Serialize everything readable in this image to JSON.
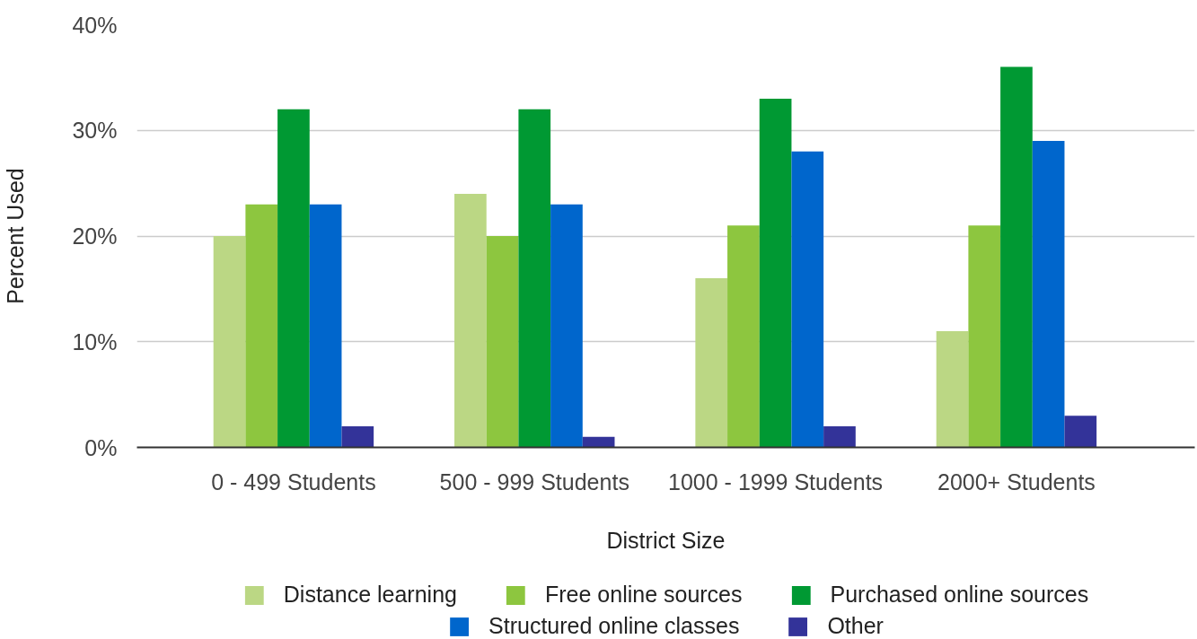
{
  "chart_data": {
    "type": "bar",
    "xlabel": "District Size",
    "ylabel": "Percent Used",
    "categories": [
      "0 - 499 Students",
      "500 - 999 Students",
      "1000 - 1999 Students",
      "2000+ Students"
    ],
    "series": [
      {
        "name": "Distance learning",
        "color": "#bbd784",
        "values": [
          20,
          24,
          16,
          11
        ]
      },
      {
        "name": "Free online sources",
        "color": "#8dc63f",
        "values": [
          23,
          20,
          21,
          21
        ]
      },
      {
        "name": "Purchased online sources",
        "color": "#009933",
        "values": [
          32,
          32,
          33,
          36
        ]
      },
      {
        "name": "Structured online classes",
        "color": "#0066cc",
        "values": [
          23,
          23,
          28,
          29
        ]
      },
      {
        "name": "Other",
        "color": "#333399",
        "values": [
          2,
          1,
          2,
          3
        ]
      }
    ],
    "ylim": [
      0,
      40
    ],
    "yticks": [
      {
        "value": 0,
        "label": "0%"
      },
      {
        "value": 10,
        "label": "10%"
      },
      {
        "value": 20,
        "label": "20%"
      },
      {
        "value": 30,
        "label": "30%"
      },
      {
        "value": 40,
        "label": "40%"
      }
    ],
    "grid": "y",
    "legend": "bottom"
  }
}
